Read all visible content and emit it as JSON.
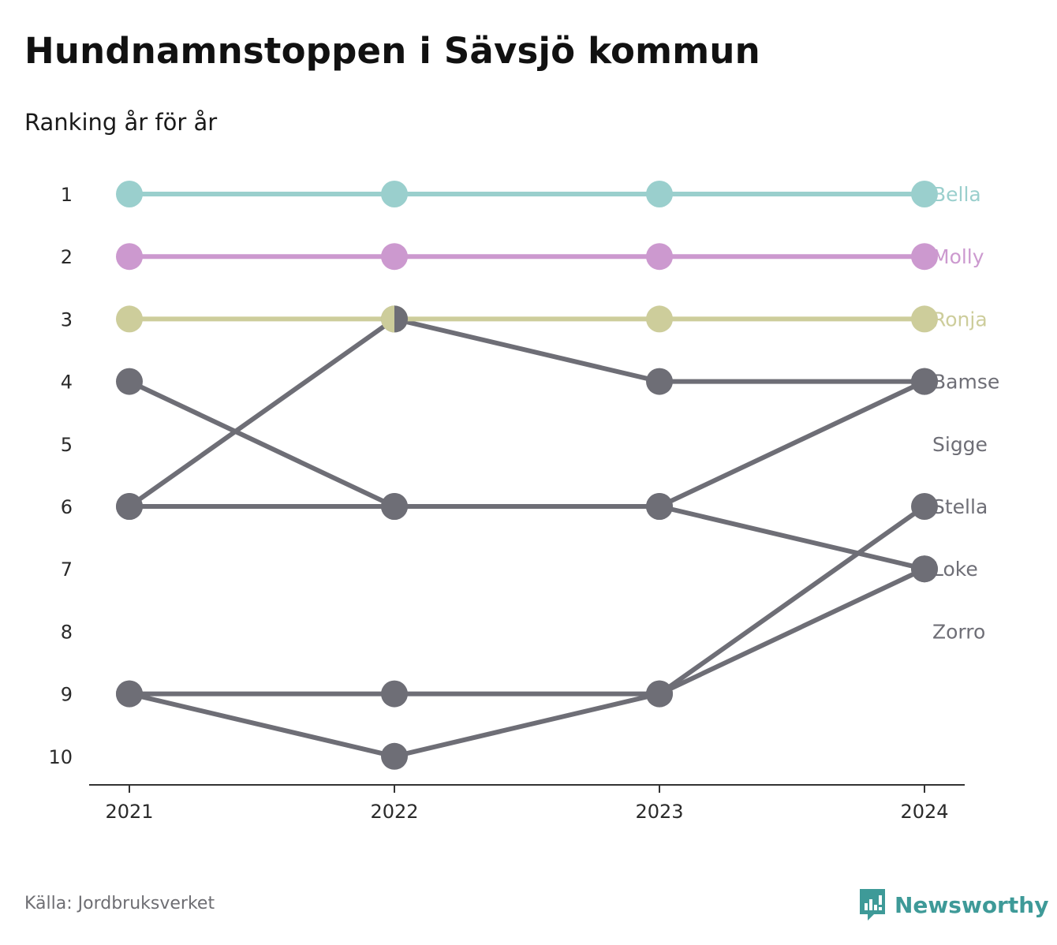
{
  "title": "Hundnamnstoppen i Sävsjö kommun",
  "subtitle": "Ranking år för år",
  "source": "Källa: Jordbruksverket",
  "brand": {
    "name": "Newsworthy",
    "icon": "newsworthy-logo-icon",
    "color": "#3e9a98"
  },
  "chart_data": {
    "type": "line",
    "chart_kind": "bump-chart",
    "x": [
      "2021",
      "2022",
      "2023",
      "2024"
    ],
    "y_axis": {
      "ticks": [
        1,
        2,
        3,
        4,
        5,
        6,
        7,
        8,
        9,
        10
      ],
      "range": [
        1,
        10
      ],
      "inverted": true
    },
    "grid": false,
    "legend": "right-end-labels",
    "highlight_colors": {
      "Bella": "#9acfcd",
      "Molly": "#cc99cf",
      "Ronja": "#cdcd9b"
    },
    "default_color": "#6e6e76",
    "series": [
      {
        "name": "Bella",
        "color": "#9acfcd",
        "values": [
          1,
          1,
          1,
          1
        ]
      },
      {
        "name": "Molly",
        "color": "#cc99cf",
        "values": [
          2,
          2,
          2,
          2
        ]
      },
      {
        "name": "Ronja",
        "color": "#cdcd9b",
        "values": [
          3,
          3,
          3,
          3
        ]
      },
      {
        "name": "Bamse",
        "color": "#6e6e76",
        "values": [
          6,
          3,
          4,
          4
        ]
      },
      {
        "name": "Sigge",
        "color": "#6e6e76",
        "values": [
          4,
          6,
          6,
          4
        ]
      },
      {
        "name": "Stella",
        "color": "#6e6e76",
        "values": [
          9,
          10,
          9,
          6
        ]
      },
      {
        "name": "Loke",
        "color": "#6e6e76",
        "values": [
          6,
          6,
          6,
          7
        ]
      },
      {
        "name": "Zorro",
        "color": "#6e6e76",
        "values": [
          9,
          9,
          9,
          7
        ]
      }
    ],
    "end_labels": [
      {
        "name": "Bella",
        "rank": 1,
        "color": "#9acfcd"
      },
      {
        "name": "Molly",
        "rank": 2,
        "color": "#cc99cf"
      },
      {
        "name": "Ronja",
        "rank": 3,
        "color": "#cdcd9b"
      },
      {
        "name": "Bamse",
        "rank": 4,
        "color": "#6e6e76"
      },
      {
        "name": "Sigge",
        "rank": 5,
        "color": "#6e6e76"
      },
      {
        "name": "Stella",
        "rank": 6,
        "color": "#6e6e76"
      },
      {
        "name": "Loke",
        "rank": 7,
        "color": "#6e6e76"
      },
      {
        "name": "Zorro",
        "rank": 8,
        "color": "#6e6e76"
      }
    ],
    "split_marker": {
      "year": "2022",
      "rank": 3,
      "colors": [
        "#cdcd9b",
        "#6e6e76"
      ]
    }
  }
}
